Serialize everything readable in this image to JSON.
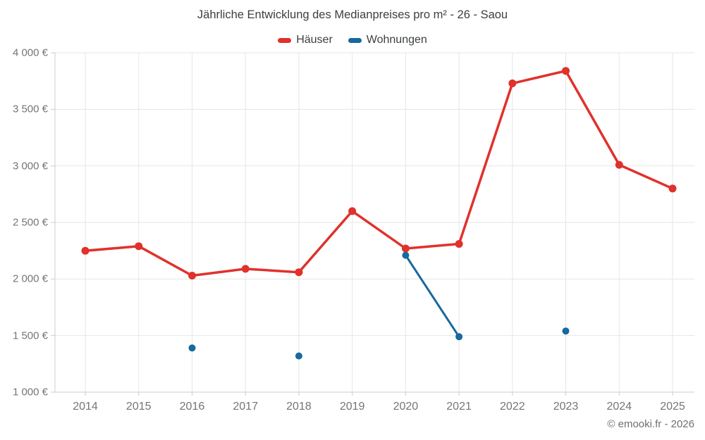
{
  "chart": {
    "title": "Jährliche Entwicklung des Medianpreises pro m² - 26 - Saou",
    "legend": [
      {
        "label": "Häuser",
        "color": "#e0312b"
      },
      {
        "label": "Wohnungen",
        "color": "#17699e"
      }
    ]
  },
  "footer": {
    "credit": "© emooki.fr - 2026"
  },
  "chart_data": {
    "type": "line",
    "title": "Jährliche Entwicklung des Medianpreises pro m² - 26 - Saou",
    "categories": [
      "2014",
      "2015",
      "2016",
      "2017",
      "2018",
      "2019",
      "2020",
      "2021",
      "2022",
      "2023",
      "2024",
      "2025"
    ],
    "series": [
      {
        "name": "Häuser",
        "color": "#e0312b",
        "values": [
          2250,
          2290,
          2030,
          2090,
          2060,
          2600,
          2270,
          2310,
          3730,
          3840,
          3010,
          2800
        ]
      },
      {
        "name": "Wohnungen",
        "color": "#17699e",
        "values": [
          null,
          null,
          1390,
          null,
          1320,
          null,
          2210,
          1490,
          null,
          1540,
          null,
          null
        ]
      }
    ],
    "ylabel": "",
    "xlabel": "",
    "ylim": [
      1000,
      4000
    ],
    "ytick_step": 500,
    "ytick_labels": [
      "4 000 €",
      "3 500 €",
      "3 000 €",
      "2 500 €",
      "2 000 €",
      "1 500 €",
      "1 000 €"
    ],
    "grid": true,
    "legend_position": "top",
    "grid_color": "#e6e6e6",
    "axis_color": "#cccccc",
    "tick_label_color": "#757575"
  }
}
